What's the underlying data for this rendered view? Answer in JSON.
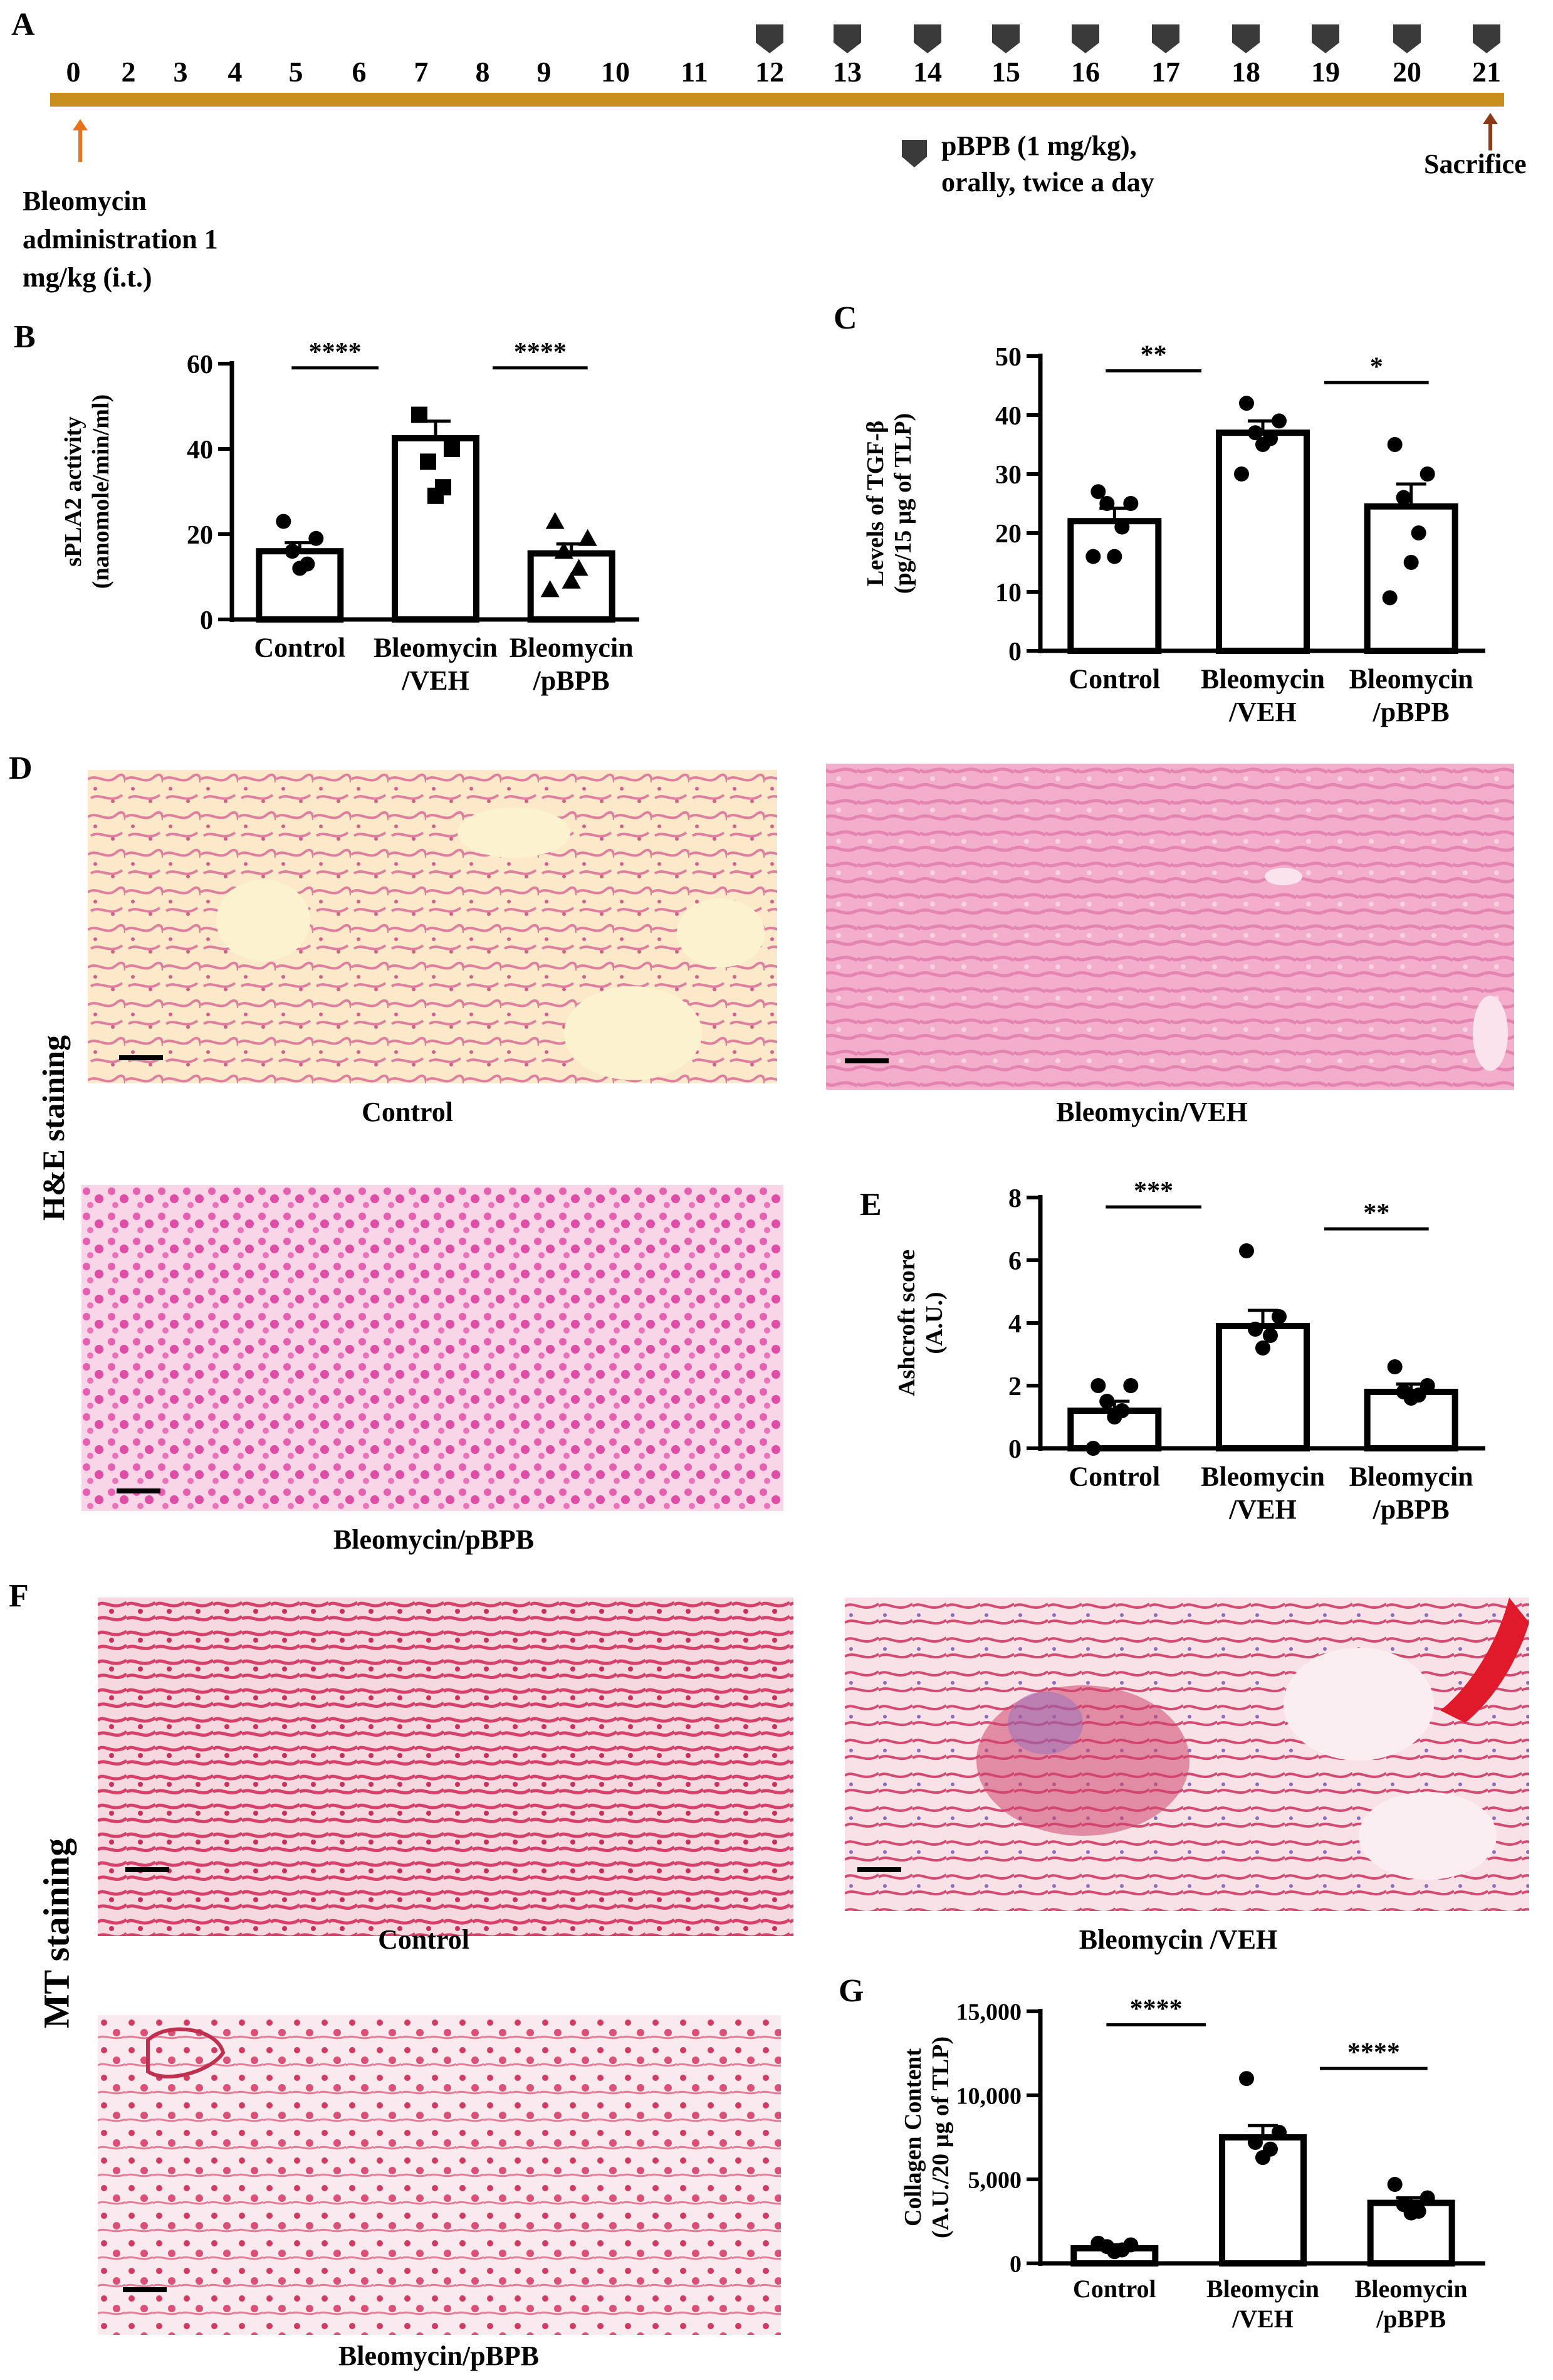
{
  "panels": {
    "a": "A",
    "b": "B",
    "c": "C",
    "d": "D",
    "e": "E",
    "f": "F",
    "g": "G"
  },
  "timeline": {
    "days": [
      "0",
      "2",
      "3",
      "4",
      "5",
      "6",
      "7",
      "8",
      "9",
      "10",
      "11",
      "12",
      "13",
      "14",
      "15",
      "16",
      "17",
      "18",
      "19",
      "20",
      "21"
    ],
    "treatment_days": [
      "12",
      "13",
      "14",
      "15",
      "16",
      "17",
      "18",
      "19",
      "20",
      "21"
    ],
    "bleomycin_lines": [
      "Bleomycin",
      "administration 1",
      "mg/kg (i.t.)"
    ],
    "pbpb_lines": [
      "pBPB (1 mg/kg),",
      "orally, twice a day"
    ],
    "sacrifice": "Sacrifice",
    "colors": {
      "axis": "#c8901a",
      "marker": "#3a3a3a",
      "arrow_start": "#e8731a",
      "arrow_end": "#8b3a1a"
    }
  },
  "micrographs": {
    "he_label": "H&E staining",
    "mt_label": "MT staining",
    "he_control": "Control",
    "he_veh": "Bleomycin/VEH",
    "he_pbpb": "Bleomycin/pBPB",
    "mt_control": "Control",
    "mt_veh": "Bleomycin /VEH",
    "mt_pbpb": "Bleomycin/pBPB"
  },
  "chart_data": [
    {
      "id": "B",
      "type": "bar",
      "categories": [
        [
          "Control"
        ],
        [
          "Bleomycin",
          "/VEH"
        ],
        [
          "Bleomycin",
          "/pBPB"
        ]
      ],
      "ylabel_lines": [
        "sPLA2 activity",
        "(nanomole/min/ml)"
      ],
      "yticks": [
        "0",
        "20",
        "40",
        "60"
      ],
      "ylim": [
        0,
        60
      ],
      "values": [
        16,
        42.5,
        15.5
      ],
      "errors": [
        2,
        4,
        2.2
      ],
      "points": [
        [
          23,
          19,
          16,
          13,
          12
        ],
        [
          48,
          40,
          37,
          31,
          29
        ],
        [
          23,
          19,
          16,
          12,
          9,
          7
        ]
      ],
      "markers": [
        "circle",
        "square",
        "triangle"
      ],
      "significance": [
        {
          "from": 0,
          "to": 1,
          "label": "****",
          "y": 59
        },
        {
          "from": 1,
          "to": 2,
          "label": "****",
          "y": 59
        }
      ]
    },
    {
      "id": "C",
      "type": "bar",
      "categories": [
        [
          "Control"
        ],
        [
          "Bleomycin",
          "/VEH"
        ],
        [
          "Bleomycin",
          "/pBPB"
        ]
      ],
      "ylabel_lines": [
        "Levels of TGF-β",
        "(pg/15 µg of TLP)"
      ],
      "yticks": [
        "0",
        "10",
        "20",
        "30",
        "40",
        "50"
      ],
      "ylim": [
        0,
        50
      ],
      "values": [
        22,
        37,
        24.5
      ],
      "errors": [
        2.2,
        2,
        3.8
      ],
      "points": [
        [
          27,
          25,
          25,
          21,
          16,
          16
        ],
        [
          42,
          39,
          37,
          36,
          35,
          30
        ],
        [
          35,
          30,
          26,
          20,
          15,
          9
        ]
      ],
      "markers": [
        "circle",
        "circle",
        "circle"
      ],
      "significance": [
        {
          "from": 0,
          "to": 1,
          "label": "**",
          "y": 47.5
        },
        {
          "from": 1,
          "to": 2,
          "label": "*",
          "y": 45.5
        }
      ]
    },
    {
      "id": "E",
      "type": "bar",
      "categories": [
        [
          "Control"
        ],
        [
          "Bleomycin",
          "/VEH"
        ],
        [
          "Bleomycin",
          "/pBPB"
        ]
      ],
      "ylabel_lines": [
        "Ashcroft score",
        "(A.U.)"
      ],
      "yticks": [
        "0",
        "2",
        "4",
        "6",
        "8"
      ],
      "ylim": [
        0,
        8
      ],
      "values": [
        1.2,
        3.9,
        1.8
      ],
      "errors": [
        0.3,
        0.5,
        0.25
      ],
      "points": [
        [
          2,
          2,
          1.5,
          1.2,
          1,
          0
        ],
        [
          6.3,
          4.2,
          3.8,
          3.6,
          3.2
        ],
        [
          2.6,
          2,
          1.8,
          1.7,
          1.6
        ]
      ],
      "markers": [
        "circle",
        "circle",
        "circle"
      ],
      "significance": [
        {
          "from": 0,
          "to": 1,
          "label": "***",
          "y": 7.7
        },
        {
          "from": 1,
          "to": 2,
          "label": "**",
          "y": 7.0
        }
      ]
    },
    {
      "id": "G",
      "type": "bar",
      "categories": [
        [
          "Control"
        ],
        [
          "Bleomycin",
          "/VEH"
        ],
        [
          "Bleomycin",
          "/pBPB"
        ]
      ],
      "ylabel_lines": [
        "Collagen Content",
        "(A.U./20 µg of TLP)"
      ],
      "yticks": [
        "0",
        "5,000",
        "10,000",
        "15,000"
      ],
      "ylim": [
        0,
        15000
      ],
      "values": [
        900,
        7500,
        3600
      ],
      "errors": [
        200,
        700,
        300
      ],
      "points": [
        [
          1200,
          1100,
          1000,
          800,
          700
        ],
        [
          11000,
          7800,
          7200,
          6800,
          6300
        ],
        [
          4700,
          3900,
          3500,
          3100,
          3000
        ]
      ],
      "markers": [
        "circle",
        "circle",
        "circle"
      ],
      "significance": [
        {
          "from": 0,
          "to": 1,
          "label": "****",
          "y": 14200
        },
        {
          "from": 1,
          "to": 2,
          "label": "****",
          "y": 11600
        }
      ]
    }
  ]
}
